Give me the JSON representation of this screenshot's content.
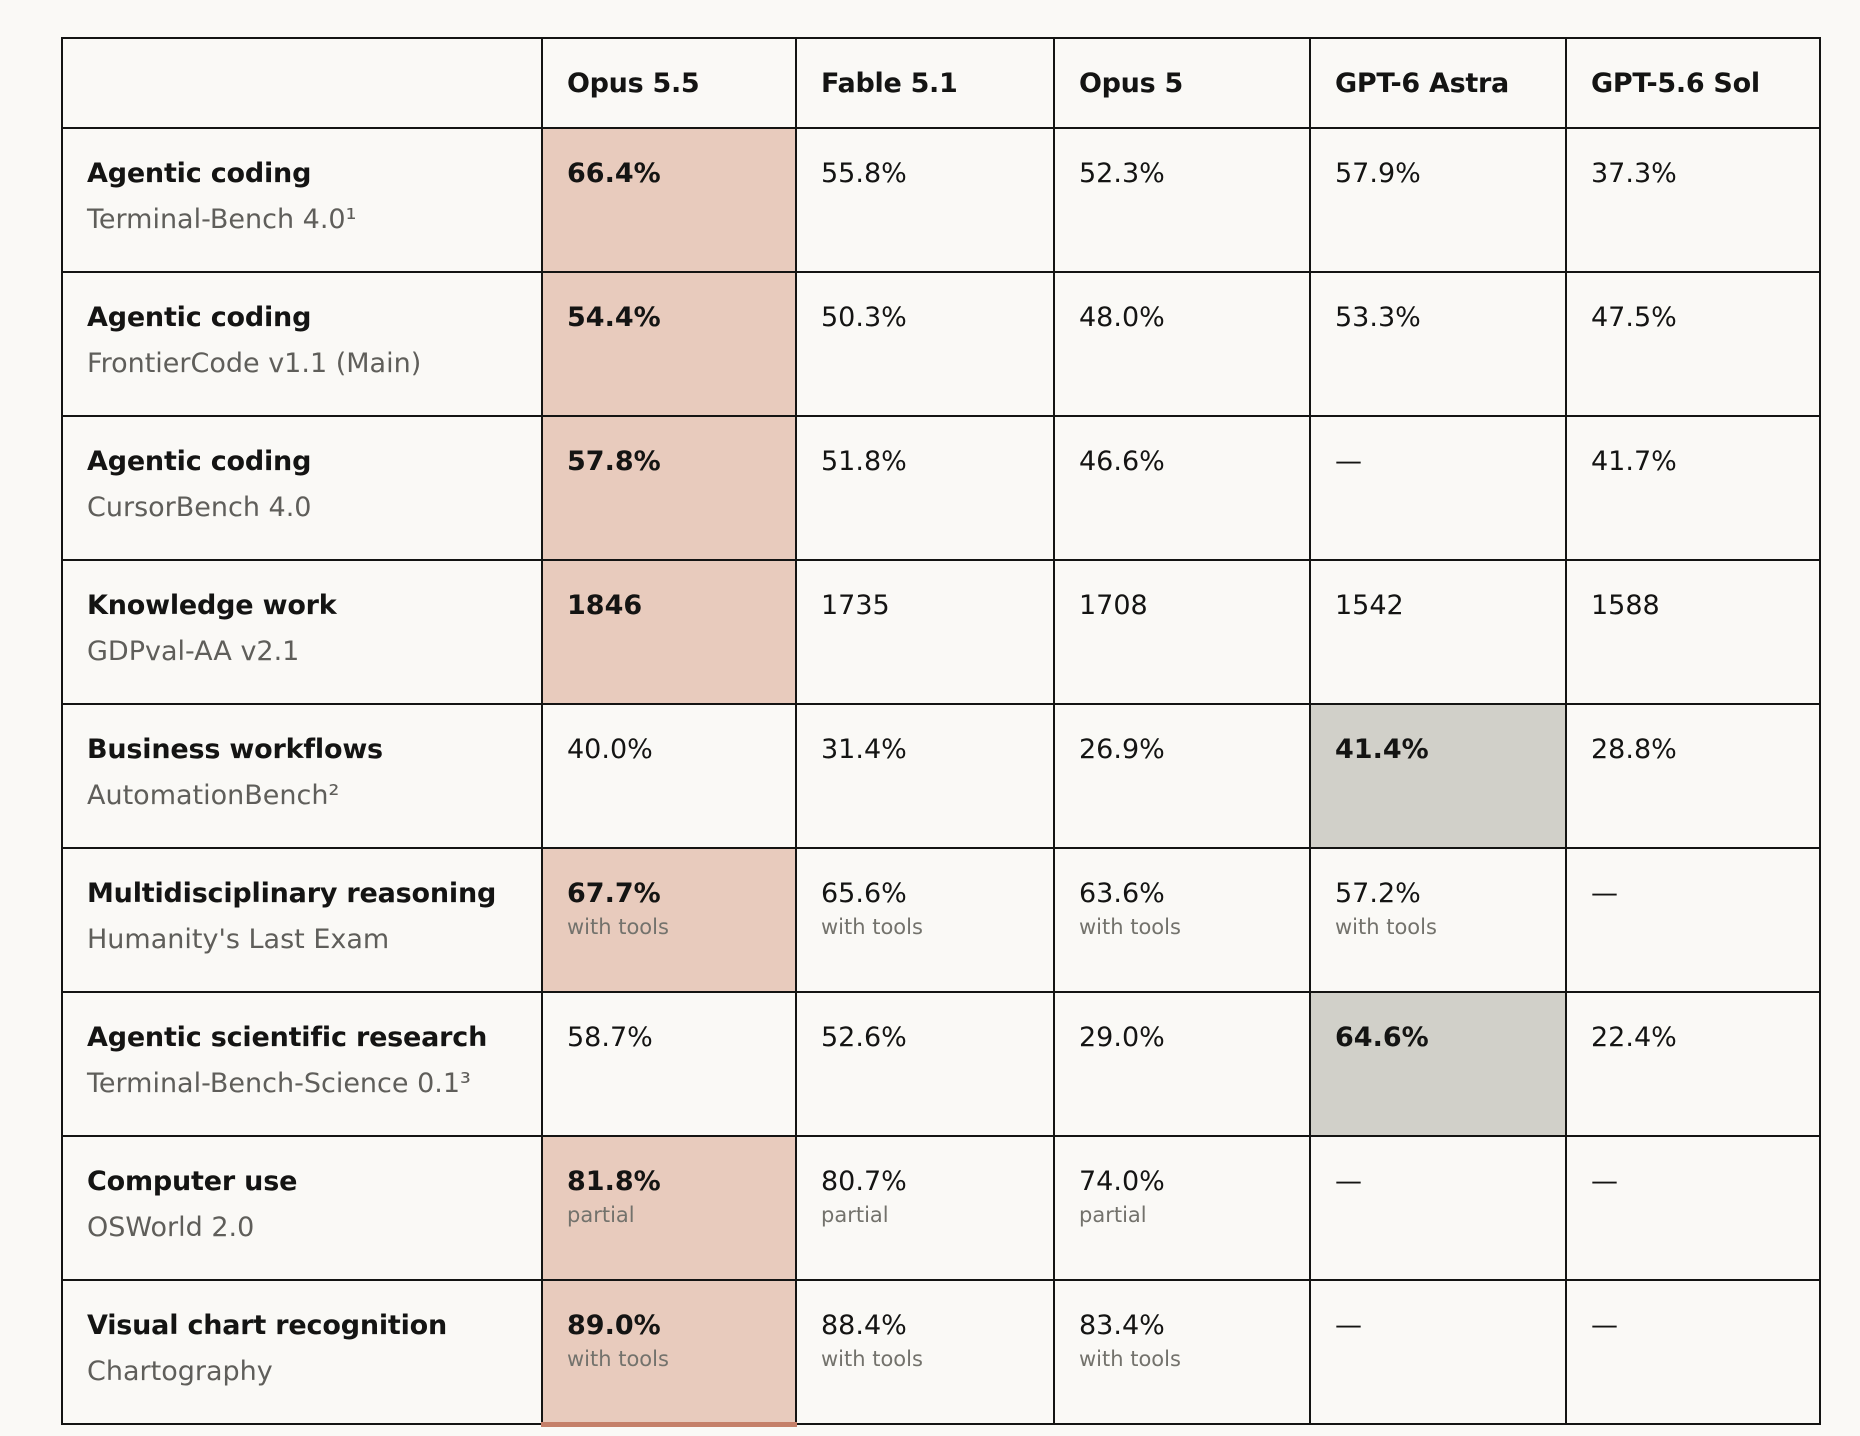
{
  "colors": {
    "accent_border": "#c5806a",
    "highlight_fill": "#e8cbbd",
    "alt_highlight_fill": "#d1d0c9"
  },
  "columns": [
    "",
    "Opus 5.5",
    "Fable 5.1",
    "Opus 5",
    "GPT-6 Astra",
    "GPT-5.6 Sol"
  ],
  "rows": [
    {
      "name": "Agentic coding",
      "benchmark": "Terminal-Bench 4.0¹",
      "cells": [
        {
          "value": "66.4%",
          "bold": true,
          "hl": "accent"
        },
        {
          "value": "55.8%"
        },
        {
          "value": "52.3%"
        },
        {
          "value": "57.9%"
        },
        {
          "value": "37.3%"
        }
      ]
    },
    {
      "name": "Agentic coding",
      "benchmark": "FrontierCode v1.1 (Main)",
      "cells": [
        {
          "value": "54.4%",
          "bold": true,
          "hl": "accent"
        },
        {
          "value": "50.3%"
        },
        {
          "value": "48.0%"
        },
        {
          "value": "53.3%"
        },
        {
          "value": "47.5%"
        }
      ]
    },
    {
      "name": "Agentic coding",
      "benchmark": "CursorBench 4.0",
      "cells": [
        {
          "value": "57.8%",
          "bold": true,
          "hl": "accent"
        },
        {
          "value": "51.8%"
        },
        {
          "value": "46.6%"
        },
        {
          "value": "—"
        },
        {
          "value": "41.7%"
        }
      ]
    },
    {
      "name": "Knowledge work",
      "benchmark": "GDPval-AA v2.1",
      "cells": [
        {
          "value": "1846",
          "bold": true,
          "hl": "accent"
        },
        {
          "value": "1735"
        },
        {
          "value": "1708"
        },
        {
          "value": "1542"
        },
        {
          "value": "1588"
        }
      ]
    },
    {
      "name": "Business workflows",
      "benchmark": "AutomationBench²",
      "cells": [
        {
          "value": "40.0%"
        },
        {
          "value": "31.4%"
        },
        {
          "value": "26.9%"
        },
        {
          "value": "41.4%",
          "bold": true,
          "hl": "gray"
        },
        {
          "value": "28.8%"
        }
      ]
    },
    {
      "name": "Multidisciplinary reasoning",
      "benchmark": "Humanity's Last Exam",
      "cells": [
        {
          "value": "67.7%",
          "note": "with tools",
          "bold": true,
          "hl": "accent"
        },
        {
          "value": "65.6%",
          "note": "with tools"
        },
        {
          "value": "63.6%",
          "note": "with tools"
        },
        {
          "value": "57.2%",
          "note": "with tools"
        },
        {
          "value": "—"
        }
      ]
    },
    {
      "name": "Agentic scientific research",
      "benchmark": "Terminal-Bench-Science 0.1³",
      "cells": [
        {
          "value": "58.7%"
        },
        {
          "value": "52.6%"
        },
        {
          "value": "29.0%"
        },
        {
          "value": "64.6%",
          "bold": true,
          "hl": "gray"
        },
        {
          "value": "22.4%"
        }
      ]
    },
    {
      "name": "Computer use",
      "benchmark": "OSWorld 2.0",
      "cells": [
        {
          "value": "81.8%",
          "note": "partial",
          "bold": true,
          "hl": "accent"
        },
        {
          "value": "80.7%",
          "note": "partial"
        },
        {
          "value": "74.0%",
          "note": "partial"
        },
        {
          "value": "—"
        },
        {
          "value": "—"
        }
      ]
    },
    {
      "name": "Visual chart recognition",
      "benchmark": "Chartography",
      "cells": [
        {
          "value": "89.0%",
          "note": "with tools",
          "bold": true,
          "hl": "accent"
        },
        {
          "value": "88.4%",
          "note": "with tools"
        },
        {
          "value": "83.4%",
          "note": "with tools"
        },
        {
          "value": "—"
        },
        {
          "value": "—"
        }
      ]
    }
  ]
}
